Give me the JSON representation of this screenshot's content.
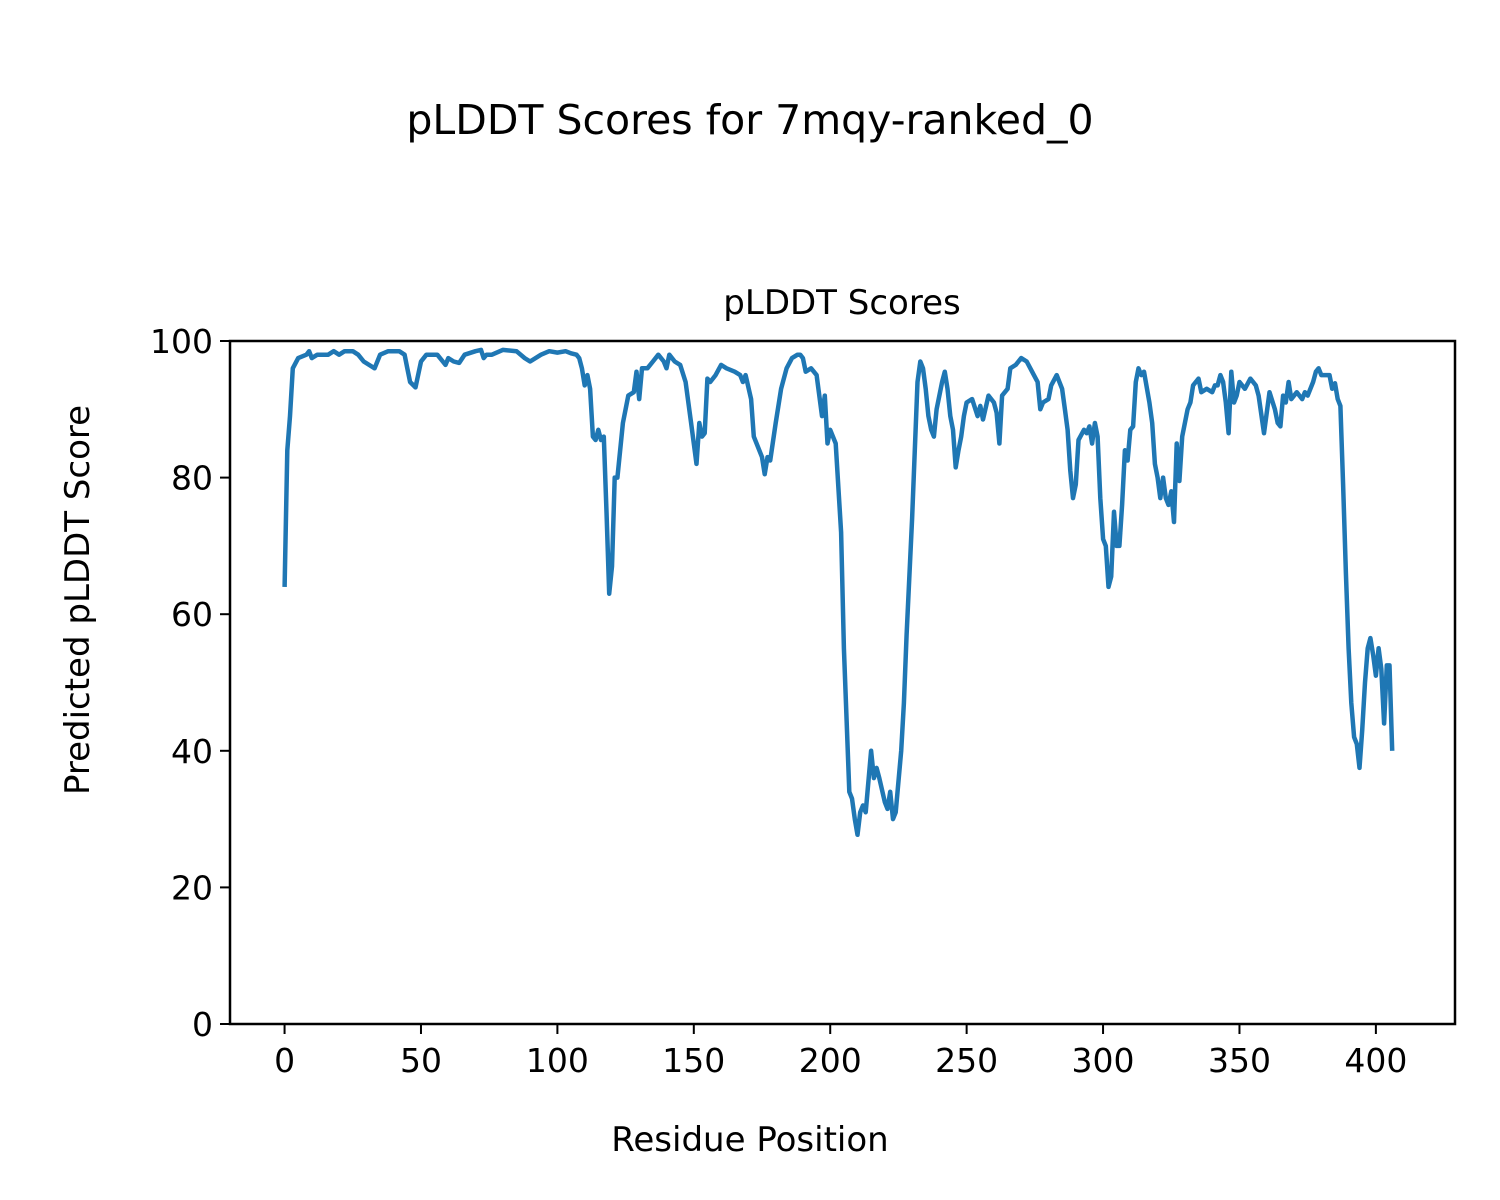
{
  "chart_data": {
    "type": "line",
    "suptitle": "pLDDT Scores for 7mqy-ranked_0",
    "title": "pLDDT Scores",
    "xlabel": "Residue Position",
    "ylabel": "Predicted pLDDT Score",
    "xlim": [
      -20,
      429
    ],
    "ylim": [
      0,
      100
    ],
    "xticks": [
      0,
      50,
      100,
      150,
      200,
      250,
      300,
      350,
      400
    ],
    "yticks": [
      0,
      20,
      40,
      60,
      80,
      100
    ],
    "grid": false,
    "series": [
      {
        "name": "pLDDT",
        "color": "#1f77b4",
        "x": [
          0,
          1,
          2,
          3,
          5,
          8,
          9,
          10,
          12,
          14,
          16,
          18,
          20,
          22,
          25,
          27,
          29,
          31,
          33,
          35,
          38,
          40,
          42,
          44,
          45,
          46,
          48,
          50,
          52,
          54,
          56,
          58,
          59,
          60,
          62,
          64,
          66,
          70,
          72,
          73,
          74,
          76,
          80,
          85,
          88,
          90,
          94,
          97,
          100,
          103,
          105,
          107,
          108,
          109,
          110,
          111,
          112,
          113,
          114,
          115,
          116,
          117,
          118,
          119,
          120,
          121,
          122,
          124,
          126,
          128,
          129,
          130,
          131,
          133,
          135,
          137,
          139,
          140,
          141,
          143,
          145,
          147,
          149,
          151,
          152,
          153,
          154,
          155,
          156,
          158,
          160,
          162,
          165,
          167,
          168,
          169,
          171,
          172,
          175,
          176,
          177,
          178,
          180,
          182,
          184,
          186,
          188,
          189,
          190,
          191,
          193,
          195,
          197,
          198,
          199,
          200,
          202,
          204,
          205,
          207,
          208,
          209,
          210,
          211,
          212,
          213,
          215,
          216,
          217,
          218,
          220,
          221,
          222,
          223,
          224,
          226,
          227,
          228,
          230,
          232,
          233,
          234,
          235,
          236,
          237,
          238,
          239,
          241,
          242,
          243,
          244,
          245,
          246,
          247,
          248,
          249,
          250,
          252,
          254,
          255,
          256,
          258,
          260,
          261,
          262,
          263,
          265,
          266,
          268,
          270,
          272,
          274,
          276,
          277,
          278,
          280,
          281,
          283,
          285,
          286,
          287,
          288,
          289,
          290,
          291,
          293,
          294,
          295,
          296,
          297,
          298,
          299,
          300,
          301,
          302,
          303,
          304,
          305,
          306,
          307,
          308,
          309,
          310,
          311,
          312,
          313,
          314,
          315,
          317,
          318,
          319,
          320,
          321,
          322,
          323,
          324,
          325,
          326,
          327,
          328,
          329,
          331,
          332,
          333,
          335,
          336,
          338,
          340,
          341,
          342,
          343,
          344,
          345,
          346,
          347,
          348,
          349,
          350,
          352,
          354,
          356,
          357,
          359,
          361,
          363,
          364,
          365,
          366,
          367,
          368,
          369,
          371,
          373,
          374,
          375,
          377,
          378,
          379,
          380,
          381,
          383,
          384,
          385,
          386,
          387,
          388,
          389,
          390,
          391,
          392,
          393,
          394,
          395,
          396,
          397,
          398,
          399,
          400,
          401,
          402,
          403,
          404,
          405,
          406
        ],
        "y": [
          64,
          84,
          89,
          96,
          97.5,
          98,
          98.5,
          97.5,
          98,
          98,
          98,
          98.5,
          98,
          98.5,
          98.5,
          98,
          97,
          96.5,
          96,
          98,
          98.5,
          98.5,
          98.5,
          98,
          96,
          94,
          93.2,
          97,
          98,
          98,
          98,
          97,
          96.5,
          97.5,
          97,
          96.8,
          98,
          98.5,
          98.7,
          97.5,
          98,
          98,
          98.7,
          98.5,
          97.5,
          97,
          98,
          98.5,
          98.3,
          98.5,
          98.2,
          98,
          97.5,
          96,
          93.5,
          95,
          93,
          86,
          85.5,
          87,
          85.5,
          86,
          75,
          63,
          67,
          80,
          80,
          88,
          92,
          92.5,
          95.5,
          91.5,
          96,
          96,
          97,
          98,
          97,
          96,
          98,
          97,
          96.5,
          94,
          88,
          82,
          88,
          86,
          86.5,
          94.5,
          94,
          95,
          96.5,
          96,
          95.5,
          95,
          94,
          95,
          91.5,
          86,
          83,
          80.5,
          83,
          82.5,
          88,
          93,
          96,
          97.5,
          98,
          98,
          97.5,
          95.5,
          96,
          95,
          89,
          92,
          85,
          87,
          85,
          72,
          55,
          34,
          33,
          30,
          27.7,
          31,
          32,
          31,
          40,
          36,
          37.5,
          36,
          32.5,
          31.5,
          34,
          30,
          31,
          40,
          47,
          57,
          74,
          94,
          97,
          96,
          93,
          89,
          87,
          86,
          90,
          94,
          95.5,
          93,
          89,
          87,
          81.5,
          84,
          86,
          89,
          91,
          91.5,
          89,
          90.5,
          88.5,
          92,
          91,
          89.5,
          85,
          92,
          93,
          96,
          96.5,
          97.5,
          97,
          95.5,
          94,
          90,
          91,
          91.5,
          93.5,
          95,
          93,
          90,
          87,
          81,
          77,
          79,
          85.5,
          87,
          86.5,
          87.5,
          85,
          88,
          86,
          77,
          71,
          70,
          64,
          65.5,
          75,
          70,
          70,
          76,
          84,
          82.5,
          87,
          87.5,
          94,
          96,
          95,
          95.5,
          91,
          88,
          82,
          80,
          77,
          80,
          77,
          76,
          78,
          73.5,
          85,
          79.5,
          86,
          90,
          91,
          93.5,
          94.5,
          92.5,
          93,
          92.5,
          93.5,
          93.5,
          95,
          94,
          91,
          86.5,
          95.5,
          91,
          92,
          94,
          93,
          94.5,
          93.5,
          92,
          86.5,
          92.5,
          90,
          88,
          87.5,
          92,
          91,
          94,
          91.5,
          92.5,
          91.5,
          92.5,
          92,
          94,
          95.5,
          96,
          95,
          95,
          95,
          93,
          93.8,
          91.5,
          90.5,
          79,
          66,
          55,
          47,
          42,
          41,
          37.5,
          43,
          50,
          55,
          56.5,
          54,
          51,
          55,
          52,
          44,
          52.5,
          52.5,
          40
        ]
      }
    ]
  }
}
